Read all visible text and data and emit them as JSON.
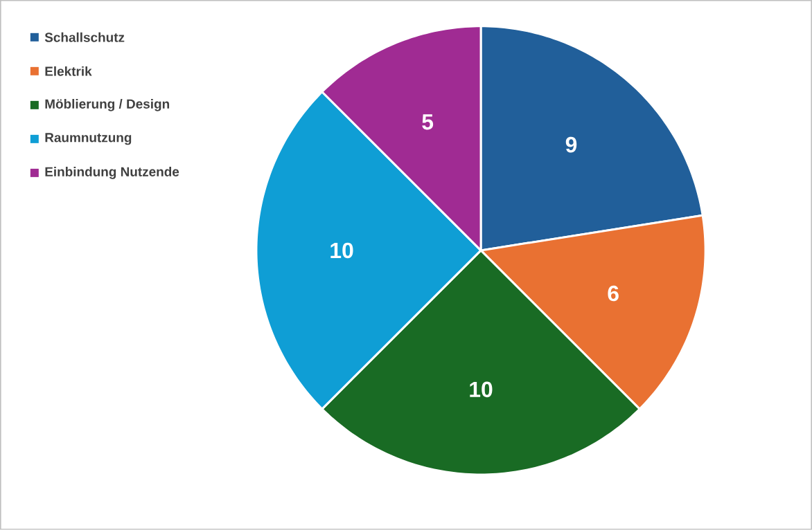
{
  "chart_data": {
    "type": "pie",
    "categories": [
      "Schallschutz",
      "Elektrik",
      "Möblierung / Design",
      "Raumnutzung",
      "Einbindung Nutzende"
    ],
    "values": [
      9,
      6,
      10,
      10,
      5
    ],
    "colors": [
      "#215f9a",
      "#e97132",
      "#196b24",
      "#0f9ed5",
      "#a02b93"
    ],
    "data_labels": true,
    "legend": "top left"
  }
}
